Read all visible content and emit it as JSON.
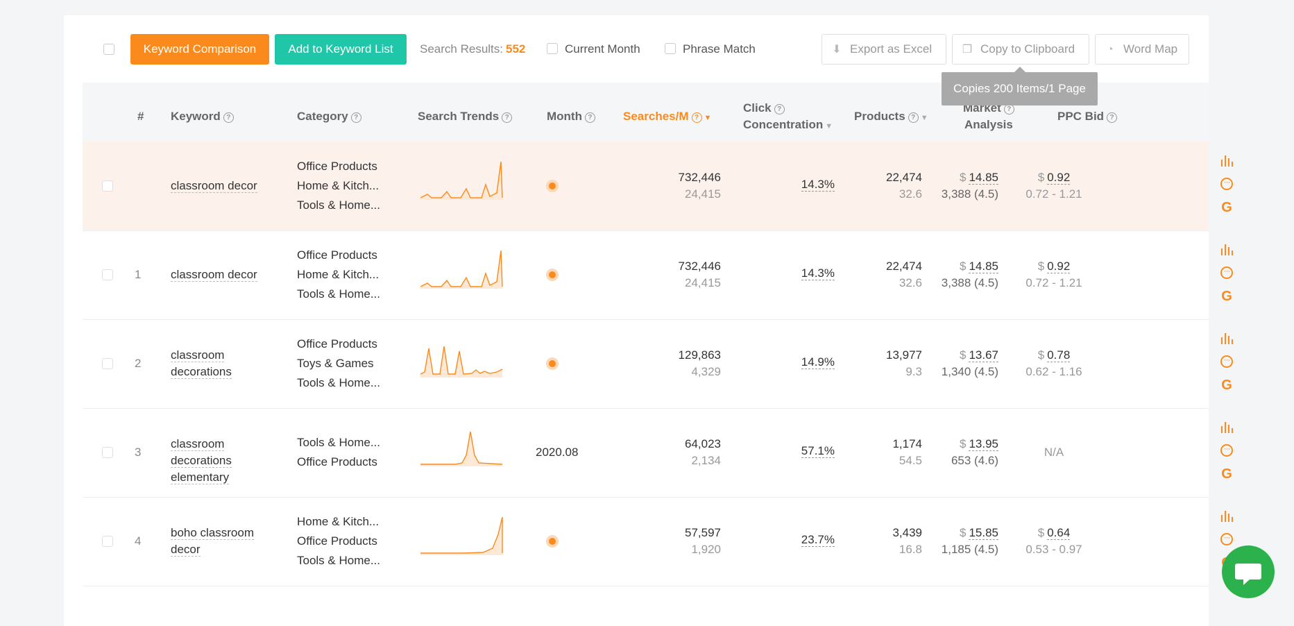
{
  "toolbar": {
    "keyword_comparison": "Keyword Comparison",
    "add_to_list": "Add to Keyword List",
    "search_results_label": "Search Results:",
    "search_results_count": "552",
    "current_month": "Current Month",
    "phrase_match": "Phrase Match",
    "export_excel": "Export as Excel",
    "copy_clipboard": "Copy to Clipboard",
    "word_map": "Word Map",
    "tooltip": "Copies 200 Items/1 Page"
  },
  "headers": {
    "num": "#",
    "keyword": "Keyword",
    "category": "Category",
    "search_trends": "Search Trends",
    "month": "Month",
    "searches": "Searches/M",
    "click_1": "Click",
    "click_2": "Concentration",
    "products": "Products",
    "market_1": "Market",
    "market_2": "Analysis",
    "ppc": "PPC Bid"
  },
  "rows": [
    {
      "num": "",
      "keyword": "classroom decor",
      "cats": [
        "Office Products",
        "Home & Kitch...",
        "Tools & Home..."
      ],
      "month": "",
      "searches": "732,446",
      "searches_sub": "24,415",
      "click": "14.3%",
      "products": "22,474",
      "products_sub": "32.6",
      "market": "14.85",
      "market_sub": "3,388 (4.5)",
      "ppc": "0.92",
      "ppc_range": "0.72 - 1.21"
    },
    {
      "num": "1",
      "keyword": "classroom decor",
      "cats": [
        "Office Products",
        "Home & Kitch...",
        "Tools & Home..."
      ],
      "month": "",
      "searches": "732,446",
      "searches_sub": "24,415",
      "click": "14.3%",
      "products": "22,474",
      "products_sub": "32.6",
      "market": "14.85",
      "market_sub": "3,388 (4.5)",
      "ppc": "0.92",
      "ppc_range": "0.72 - 1.21"
    },
    {
      "num": "2",
      "keyword": "classroom decorations",
      "cats": [
        "Office Products",
        "Toys & Games",
        "Tools & Home..."
      ],
      "month": "",
      "searches": "129,863",
      "searches_sub": "4,329",
      "click": "14.9%",
      "products": "13,977",
      "products_sub": "9.3",
      "market": "13.67",
      "market_sub": "1,340 (4.5)",
      "ppc": "0.78",
      "ppc_range": "0.62 - 1.16"
    },
    {
      "num": "3",
      "keyword": "classroom decorations elementary",
      "cats": [
        "Tools & Home...",
        "Office Products"
      ],
      "month": "2020.08",
      "searches": "64,023",
      "searches_sub": "2,134",
      "click": "57.1%",
      "products": "1,174",
      "products_sub": "54.5",
      "market": "13.95",
      "market_sub": "653 (4.6)",
      "ppc": "",
      "ppc_range": "N/A"
    },
    {
      "num": "4",
      "keyword": "boho classroom decor",
      "cats": [
        "Home & Kitch...",
        "Office Products",
        "Tools & Home..."
      ],
      "month": "",
      "searches": "57,597",
      "searches_sub": "1,920",
      "click": "23.7%",
      "products": "3,439",
      "products_sub": "16.8",
      "market": "15.85",
      "market_sub": "1,185 (4.5)",
      "ppc": "0.64",
      "ppc_range": "0.53 - 0.97"
    }
  ],
  "icons": {
    "dollar": "$",
    "google": "G",
    "more": "···"
  },
  "colors": {
    "accent": "#fb8a1c",
    "teal": "#1fc6a8",
    "highlight_row": "#fdf1ec",
    "chat": "#2bb24c"
  }
}
